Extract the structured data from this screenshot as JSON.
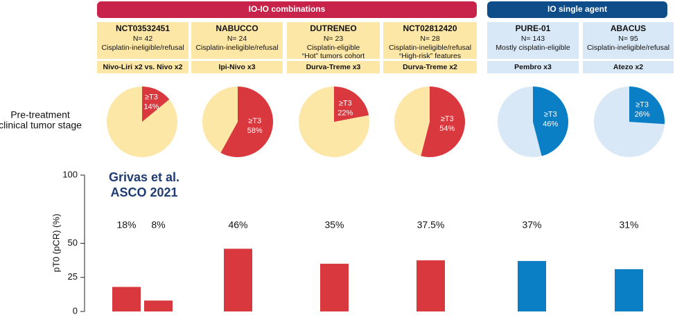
{
  "groups": [
    "IO-IO combinations",
    "IO single agent"
  ],
  "row_label": [
    "Pre-treatment",
    "clinical tumor stage"
  ],
  "source": [
    "Grivas et al.",
    "ASCO 2021"
  ],
  "pie_label": "≥T3",
  "trials": [
    {
      "name": "NCT03532451",
      "n": "N= 42",
      "desc": [
        "Cisplatin-ineligible/refusal"
      ],
      "regimen": "Nivo-Liri x2 vs. Nivo x2",
      "pie": 14,
      "pie_text": "14%"
    },
    {
      "name": "NABUCCO",
      "n": "N= 24",
      "desc": [
        "Cisplatin-ineligible/refusal"
      ],
      "regimen": "Ipi-Nivo x3",
      "pie": 58,
      "pie_text": "58%"
    },
    {
      "name": "DUTRENEO",
      "n": "N= 23",
      "desc": [
        "Cisplatin-eligible",
        "“Hot” tumors cohort"
      ],
      "regimen": "Durva-Treme x3",
      "pie": 22,
      "pie_text": "22%"
    },
    {
      "name": "NCT02812420",
      "n": "N= 28",
      "desc": [
        "Cisplatin-ineligible/refusal",
        "“High-risk” features"
      ],
      "regimen": "Durva-Treme x2",
      "pie": 54,
      "pie_text": "54%"
    },
    {
      "name": "PURE-01",
      "n": "N= 143",
      "desc": [
        "Mostly cisplatin-eligible"
      ],
      "regimen": "Pembro x3",
      "pie": 46,
      "pie_text": "46%"
    },
    {
      "name": "ABACUS",
      "n": "N= 95",
      "desc": [
        "Cisplatin-ineligible/refusal"
      ],
      "regimen": "Atezo x2",
      "pie": 26,
      "pie_text": "26%"
    }
  ],
  "chart_data": {
    "type": "bar",
    "y_label": "pT0 (pCR) (%)",
    "categories": [
      null,
      null,
      null,
      null,
      null,
      null,
      null
    ],
    "values": [
      18,
      8,
      46,
      35,
      37.5,
      37,
      31
    ],
    "value_labels": [
      "18%",
      "8%",
      "46%",
      "35%",
      "37.5%",
      "37%",
      "31%"
    ],
    "colors": [
      "#d9383e",
      "#d9383e",
      "#d9383e",
      "#d9383e",
      "#d9383e",
      "#0a7fc6",
      "#0a7fc6"
    ],
    "ylim": [
      0,
      100
    ],
    "yticks": [
      0,
      25,
      50,
      100
    ]
  }
}
